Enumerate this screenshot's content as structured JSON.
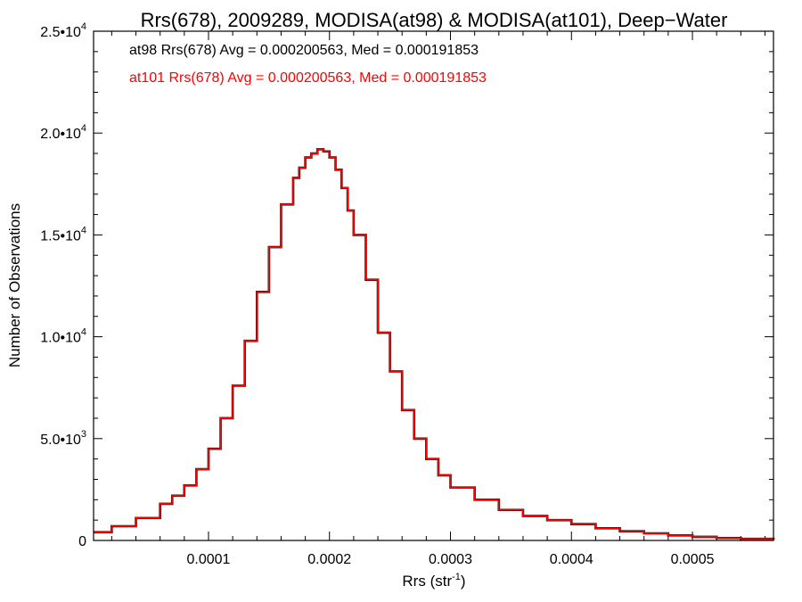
{
  "chart_data": {
    "type": "line",
    "title": "Rrs(678), 2009289, MODISA(at98) & MODISA(at101), Deep−Water",
    "xlabel": "Rrs (str",
    "xlabel_sup": "-1",
    "xlabel_close": ")",
    "ylabel": "Number of Observations",
    "xlim": [
      5e-06,
      0.000567
    ],
    "ylim": [
      0,
      25000
    ],
    "x_ticks": [
      {
        "value": 0.0001,
        "label": "0.0001"
      },
      {
        "value": 0.0002,
        "label": "0.0002"
      },
      {
        "value": 0.0003,
        "label": "0.0003"
      },
      {
        "value": 0.0004,
        "label": "0.0004"
      },
      {
        "value": 0.0005,
        "label": "0.0005"
      }
    ],
    "y_ticks": [
      {
        "value": 0,
        "mant": "0",
        "exp": ""
      },
      {
        "value": 5000,
        "mant": "5.0•10",
        "exp": "3"
      },
      {
        "value": 10000,
        "mant": "1.0•10",
        "exp": "4"
      },
      {
        "value": 15000,
        "mant": "1.5•10",
        "exp": "4"
      },
      {
        "value": 20000,
        "mant": "2.0•10",
        "exp": "4"
      },
      {
        "value": 25000,
        "mant": "2.5•10",
        "exp": "4"
      }
    ],
    "annotations": [
      {
        "text": "at98 Rrs(678) Avg = 0.000200563, Med = 0.000191853",
        "color": "#000000"
      },
      {
        "text": "at101 Rrs(678) Avg = 0.000200563, Med = 0.000191853",
        "color": "#ff0000"
      }
    ],
    "series": [
      {
        "x": [
          5e-06,
          2e-05,
          4e-05,
          6e-05,
          7e-05,
          8e-05,
          9e-05,
          0.0001,
          0.00011,
          0.00012,
          0.00013,
          0.00014,
          0.00015,
          0.00016,
          0.00017,
          0.000175,
          0.00018,
          0.000185,
          0.00019,
          0.000195,
          0.0002,
          0.000205,
          0.00021,
          0.000215,
          0.00022,
          0.00023,
          0.00024,
          0.00025,
          0.00026,
          0.00027,
          0.00028,
          0.00029,
          0.0003,
          0.00032,
          0.00034,
          0.00036,
          0.00038,
          0.0004,
          0.00042,
          0.00044,
          0.00046,
          0.00048,
          0.0005,
          0.00052,
          0.00054,
          0.000567
        ],
        "values": [
          400,
          700,
          1100,
          1800,
          2200,
          2700,
          3500,
          4500,
          6000,
          7600,
          9800,
          12200,
          14400,
          16500,
          17800,
          18300,
          18800,
          19000,
          19200,
          19100,
          18800,
          18200,
          17300,
          16200,
          15000,
          12800,
          10200,
          8300,
          6400,
          5000,
          4000,
          3200,
          2600,
          2000,
          1500,
          1200,
          1000,
          800,
          600,
          450,
          350,
          250,
          180,
          120,
          80,
          30
        ],
        "color": "#ff0000"
      }
    ]
  }
}
